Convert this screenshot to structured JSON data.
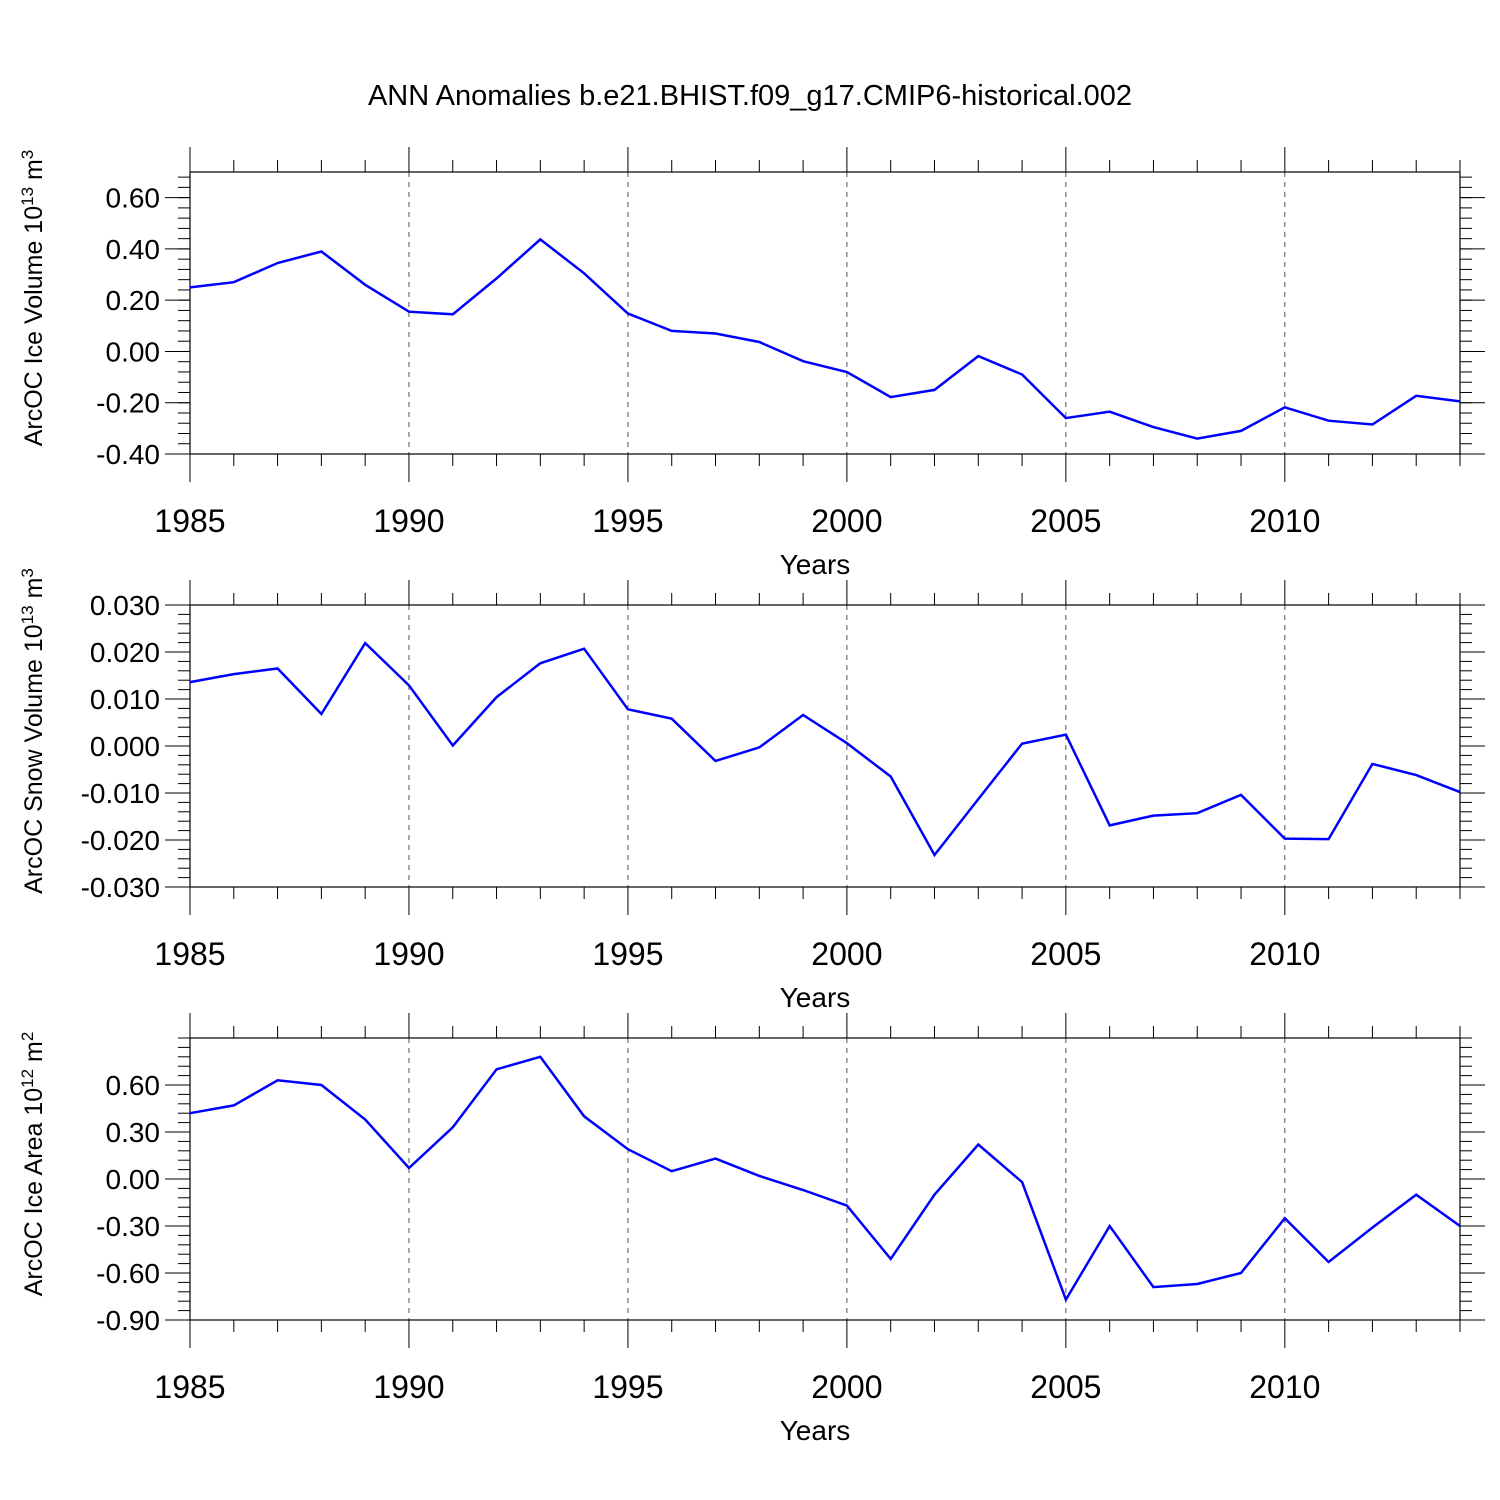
{
  "title": "ANN Anomalies b.e21.BHIST.f09_g17.CMIP6-historical.002",
  "line_color": "#0000ff",
  "chart_data": [
    {
      "type": "line",
      "xlabel": "Years",
      "ylabel": "ArcOC Ice Volume 10",
      "ylabel_exp": "13",
      "ylabel_unit": "m",
      "ylabel_unit_exp": "3",
      "xlim": [
        1985,
        2014
      ],
      "ylim": [
        -0.4,
        0.7
      ],
      "x_ticks": [
        "1985",
        "1990",
        "1995",
        "2000",
        "2005",
        "2010"
      ],
      "y_ticks": [
        "-0.40",
        "-0.20",
        "0.00",
        "0.20",
        "0.40",
        "0.60"
      ],
      "x": [
        1985,
        1986,
        1987,
        1988,
        1989,
        1990,
        1991,
        1992,
        1993,
        1994,
        1995,
        1996,
        1997,
        1998,
        1999,
        2000,
        2001,
        2002,
        2003,
        2004,
        2005,
        2006,
        2007,
        2008,
        2009,
        2010,
        2011,
        2012,
        2013,
        2014
      ],
      "series": [
        {
          "values": [
            0.25,
            0.27,
            0.345,
            0.39,
            0.26,
            0.155,
            0.145,
            0.285,
            0.437,
            0.305,
            0.148,
            0.08,
            0.07,
            0.037,
            -0.038,
            -0.08,
            -0.178,
            -0.15,
            -0.018,
            -0.09,
            -0.26,
            -0.235,
            -0.295,
            -0.34,
            -0.31,
            -0.218,
            -0.27,
            -0.285,
            -0.173,
            -0.195
          ]
        }
      ],
      "grid": "dashed vertical lines at 1990, 1995, 2000, 2005, 2010"
    },
    {
      "type": "line",
      "xlabel": "Years",
      "ylabel": "ArcOC Snow Volume 10",
      "ylabel_exp": "13",
      "ylabel_unit": "m",
      "ylabel_unit_exp": "3",
      "xlim": [
        1985,
        2014
      ],
      "ylim": [
        -0.03,
        0.03
      ],
      "x_ticks": [
        "1985",
        "1990",
        "1995",
        "2000",
        "2005",
        "2010"
      ],
      "y_ticks": [
        "-0.030",
        "-0.020",
        "-0.010",
        "0.000",
        "0.010",
        "0.020",
        "0.030"
      ],
      "x": [
        1985,
        1986,
        1987,
        1988,
        1989,
        1990,
        1991,
        1992,
        1993,
        1994,
        1995,
        1996,
        1997,
        1998,
        1999,
        2000,
        2001,
        2002,
        2003,
        2004,
        2005,
        2006,
        2007,
        2008,
        2009,
        2010,
        2011,
        2012,
        2013,
        2014
      ],
      "series": [
        {
          "values": [
            0.0136,
            0.0153,
            0.0165,
            0.0068,
            0.0219,
            0.0129,
            0.0001,
            0.0104,
            0.0176,
            0.0207,
            0.0078,
            0.0058,
            -0.0032,
            -0.0003,
            0.0066,
            0.0006,
            -0.0065,
            -0.0232,
            -0.0113,
            0.0005,
            0.0024,
            -0.0169,
            -0.0148,
            -0.0143,
            -0.0104,
            -0.0197,
            -0.0198,
            -0.0038,
            -0.0062,
            -0.0098
          ]
        }
      ],
      "grid": "dashed vertical lines at 1990, 1995, 2000, 2005, 2010"
    },
    {
      "type": "line",
      "xlabel": "Years",
      "ylabel": "ArcOC Ice Area 10",
      "ylabel_exp": "12",
      "ylabel_unit": "m",
      "ylabel_unit_exp": "2",
      "xlim": [
        1985,
        2014
      ],
      "ylim": [
        -0.9,
        0.9
      ],
      "x_ticks": [
        "1985",
        "1990",
        "1995",
        "2000",
        "2005",
        "2010"
      ],
      "y_ticks": [
        "-0.90",
        "-0.60",
        "-0.30",
        "0.00",
        "0.30",
        "0.60"
      ],
      "x": [
        1985,
        1986,
        1987,
        1988,
        1989,
        1990,
        1991,
        1992,
        1993,
        1994,
        1995,
        1996,
        1997,
        1998,
        1999,
        2000,
        2001,
        2002,
        2003,
        2004,
        2005,
        2006,
        2007,
        2008,
        2009,
        2010,
        2011,
        2012,
        2013,
        2014
      ],
      "series": [
        {
          "values": [
            0.42,
            0.47,
            0.63,
            0.6,
            0.38,
            0.07,
            0.33,
            0.7,
            0.78,
            0.4,
            0.19,
            0.05,
            0.13,
            0.02,
            -0.07,
            -0.17,
            -0.51,
            -0.1,
            0.22,
            -0.02,
            -0.77,
            -0.3,
            -0.69,
            -0.67,
            -0.6,
            -0.25,
            -0.53,
            -0.31,
            -0.1,
            -0.3
          ]
        }
      ],
      "grid": "dashed vertical lines at 1990, 1995, 2000, 2005, 2010"
    }
  ]
}
